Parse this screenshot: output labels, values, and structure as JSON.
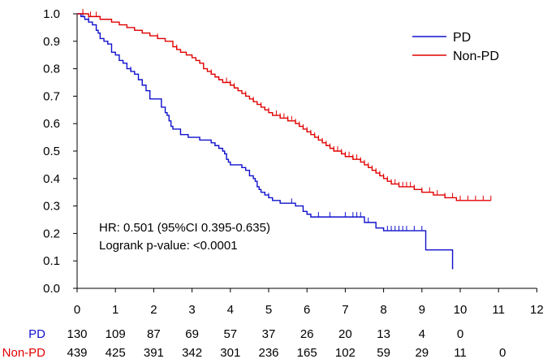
{
  "chart_data": {
    "type": "line",
    "subtype": "kaplan-meier",
    "title": "",
    "xlabel": "",
    "ylabel": "",
    "xlim": [
      0,
      12
    ],
    "ylim": [
      0,
      1.0
    ],
    "x_ticks": [
      "0",
      "1",
      "2",
      "3",
      "4",
      "5",
      "6",
      "7",
      "8",
      "9",
      "10",
      "11",
      "12"
    ],
    "y_ticks": [
      "0.0",
      "0.1",
      "0.2",
      "0.3",
      "0.4",
      "0.5",
      "0.6",
      "0.7",
      "0.8",
      "0.9",
      "1.0"
    ],
    "legend": {
      "position": "top-right",
      "entries": [
        {
          "label": "PD",
          "color": "#1010CC"
        },
        {
          "label": "Non-PD",
          "color": "#E00000"
        }
      ]
    },
    "annotations": [
      "HR: 0.501 (95%CI 0.395-0.635)",
      "Logrank p-value: <0.0001"
    ],
    "series": [
      {
        "name": "PD",
        "color": "#1010CC",
        "steps": [
          [
            0,
            1.0
          ],
          [
            0.1,
            0.99
          ],
          [
            0.2,
            0.98
          ],
          [
            0.3,
            0.97
          ],
          [
            0.4,
            0.96
          ],
          [
            0.5,
            0.94
          ],
          [
            0.55,
            0.93
          ],
          [
            0.6,
            0.91
          ],
          [
            0.7,
            0.9
          ],
          [
            0.8,
            0.89
          ],
          [
            0.9,
            0.86
          ],
          [
            1.0,
            0.85
          ],
          [
            1.1,
            0.83
          ],
          [
            1.2,
            0.82
          ],
          [
            1.3,
            0.8
          ],
          [
            1.4,
            0.79
          ],
          [
            1.5,
            0.78
          ],
          [
            1.6,
            0.76
          ],
          [
            1.7,
            0.74
          ],
          [
            1.8,
            0.72
          ],
          [
            1.9,
            0.69
          ],
          [
            2.2,
            0.66
          ],
          [
            2.3,
            0.64
          ],
          [
            2.35,
            0.63
          ],
          [
            2.4,
            0.61
          ],
          [
            2.45,
            0.59
          ],
          [
            2.5,
            0.58
          ],
          [
            2.7,
            0.56
          ],
          [
            2.9,
            0.55
          ],
          [
            3.2,
            0.54
          ],
          [
            3.5,
            0.53
          ],
          [
            3.6,
            0.52
          ],
          [
            3.7,
            0.51
          ],
          [
            3.8,
            0.5
          ],
          [
            3.85,
            0.49
          ],
          [
            3.9,
            0.47
          ],
          [
            3.95,
            0.46
          ],
          [
            4.0,
            0.45
          ],
          [
            4.3,
            0.44
          ],
          [
            4.4,
            0.43
          ],
          [
            4.5,
            0.41
          ],
          [
            4.6,
            0.4
          ],
          [
            4.65,
            0.39
          ],
          [
            4.7,
            0.37
          ],
          [
            4.75,
            0.36
          ],
          [
            4.8,
            0.35
          ],
          [
            4.9,
            0.34
          ],
          [
            5.0,
            0.33
          ],
          [
            5.1,
            0.32
          ],
          [
            5.3,
            0.31
          ],
          [
            5.7,
            0.3
          ],
          [
            5.9,
            0.28
          ],
          [
            6.0,
            0.27
          ],
          [
            6.1,
            0.26
          ],
          [
            7.5,
            0.24
          ],
          [
            7.8,
            0.22
          ],
          [
            8.0,
            0.21
          ],
          [
            9.1,
            0.14
          ],
          [
            9.8,
            0.07
          ]
        ],
        "end_x": 9.8,
        "censor_x": [
          0.15,
          0.3,
          1.4,
          3.9,
          5.0,
          5.6,
          6.3,
          6.6,
          7.0,
          7.2,
          7.3,
          7.4,
          7.6,
          8.1,
          8.2,
          8.3,
          8.4,
          8.5,
          8.6,
          8.8,
          9.0,
          9.8
        ]
      },
      {
        "name": "Non-PD",
        "color": "#E00000",
        "steps": [
          [
            0,
            1.0
          ],
          [
            0.3,
            0.99
          ],
          [
            0.6,
            0.98
          ],
          [
            0.9,
            0.97
          ],
          [
            1.1,
            0.96
          ],
          [
            1.3,
            0.95
          ],
          [
            1.5,
            0.94
          ],
          [
            1.7,
            0.93
          ],
          [
            1.9,
            0.92
          ],
          [
            2.1,
            0.91
          ],
          [
            2.3,
            0.9
          ],
          [
            2.5,
            0.88
          ],
          [
            2.6,
            0.87
          ],
          [
            2.7,
            0.86
          ],
          [
            2.85,
            0.85
          ],
          [
            3.0,
            0.84
          ],
          [
            3.1,
            0.83
          ],
          [
            3.2,
            0.82
          ],
          [
            3.3,
            0.8
          ],
          [
            3.4,
            0.79
          ],
          [
            3.5,
            0.78
          ],
          [
            3.6,
            0.77
          ],
          [
            3.7,
            0.76
          ],
          [
            3.8,
            0.75
          ],
          [
            4.0,
            0.74
          ],
          [
            4.1,
            0.73
          ],
          [
            4.2,
            0.72
          ],
          [
            4.3,
            0.71
          ],
          [
            4.4,
            0.7
          ],
          [
            4.5,
            0.69
          ],
          [
            4.6,
            0.68
          ],
          [
            4.7,
            0.67
          ],
          [
            4.8,
            0.66
          ],
          [
            4.9,
            0.65
          ],
          [
            5.0,
            0.64
          ],
          [
            5.1,
            0.63
          ],
          [
            5.3,
            0.62
          ],
          [
            5.5,
            0.61
          ],
          [
            5.7,
            0.6
          ],
          [
            5.8,
            0.59
          ],
          [
            5.9,
            0.58
          ],
          [
            6.0,
            0.57
          ],
          [
            6.1,
            0.56
          ],
          [
            6.2,
            0.55
          ],
          [
            6.3,
            0.54
          ],
          [
            6.4,
            0.53
          ],
          [
            6.5,
            0.52
          ],
          [
            6.6,
            0.51
          ],
          [
            6.7,
            0.5
          ],
          [
            6.9,
            0.49
          ],
          [
            7.0,
            0.48
          ],
          [
            7.2,
            0.47
          ],
          [
            7.4,
            0.46
          ],
          [
            7.5,
            0.45
          ],
          [
            7.6,
            0.44
          ],
          [
            7.7,
            0.43
          ],
          [
            7.8,
            0.42
          ],
          [
            7.9,
            0.41
          ],
          [
            8.0,
            0.4
          ],
          [
            8.1,
            0.39
          ],
          [
            8.2,
            0.38
          ],
          [
            8.4,
            0.37
          ],
          [
            8.8,
            0.36
          ],
          [
            9.0,
            0.35
          ],
          [
            9.3,
            0.34
          ],
          [
            9.6,
            0.33
          ],
          [
            9.9,
            0.32
          ]
        ],
        "end_x": 10.8,
        "censor_x": [
          0.15,
          0.35,
          0.5,
          2.1,
          2.6,
          3.5,
          3.9,
          4.0,
          4.1,
          4.4,
          4.6,
          4.8,
          5.0,
          5.2,
          5.3,
          5.4,
          5.5,
          5.6,
          5.7,
          5.8,
          5.9,
          6.0,
          6.1,
          6.2,
          6.3,
          6.4,
          6.5,
          6.6,
          6.7,
          6.8,
          6.9,
          7.0,
          7.1,
          7.2,
          7.3,
          7.4,
          7.5,
          7.6,
          7.7,
          7.8,
          7.9,
          8.0,
          8.1,
          8.2,
          8.3,
          8.4,
          8.5,
          8.6,
          8.7,
          8.8,
          9.0,
          9.2,
          9.4,
          9.6,
          9.8,
          10.0,
          10.2,
          10.4,
          10.6,
          10.8
        ]
      }
    ]
  },
  "risk_table": {
    "times": [
      0,
      1,
      2,
      3,
      4,
      5,
      6,
      7,
      8,
      9,
      10,
      11
    ],
    "rows": [
      {
        "label": "PD",
        "color": "#1010CC",
        "counts": [
          "130",
          "109",
          "87",
          "69",
          "57",
          "37",
          "26",
          "20",
          "13",
          "4",
          "0",
          ""
        ]
      },
      {
        "label": "Non-PD",
        "color": "#E00000",
        "counts": [
          "439",
          "425",
          "391",
          "342",
          "301",
          "236",
          "165",
          "102",
          "59",
          "29",
          "11",
          "0"
        ]
      }
    ]
  }
}
